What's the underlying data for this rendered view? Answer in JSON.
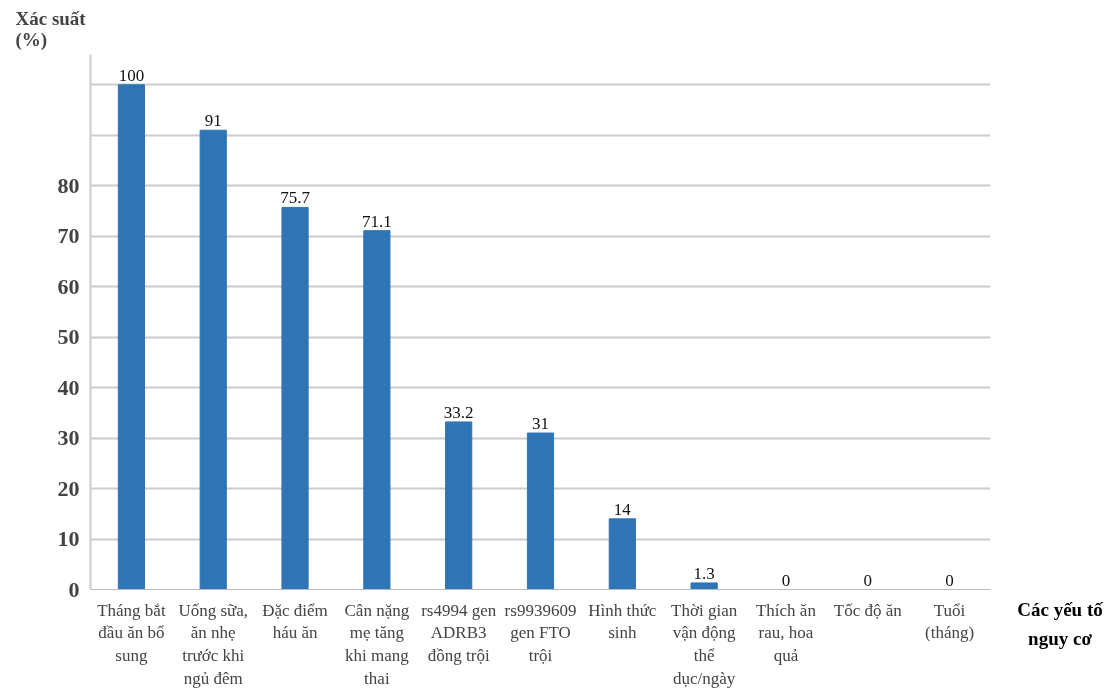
{
  "chart_data": {
    "type": "bar",
    "xlabel": "Các yếu tố\nnguy cơ",
    "ylabel": "Xác suất\n(%)",
    "categories": [
      "Tháng bắt\nđầu ăn bổ\nsung",
      "Uống sữa,\năn nhẹ\ntrước khi\nngủ đêm",
      "Đặc điểm\nháu ăn",
      "Cân nặng\nmẹ tăng\nkhi mang\nthai",
      "rs4994 gen\nADRB3\nđồng trội",
      "rs9939609\ngen FTO\ntrội",
      "Hình thức\nsinh",
      "Thời gian\nvận động\nthể\ndục/ngày",
      "Thích ăn\nrau, hoa\nquả",
      "Tốc độ ăn",
      "Tuổi\n(tháng)"
    ],
    "values": [
      100,
      91,
      75.7,
      71.1,
      33.2,
      31,
      14,
      1.3,
      0,
      0,
      0
    ],
    "color": "#2f75b5",
    "data_labels": true,
    "ylim": [
      0,
      106
    ],
    "yticks": [
      0,
      10,
      20,
      30,
      40,
      50,
      60,
      70,
      80,
      {
        "value": 90,
        "label": null
      },
      {
        "value": 100,
        "label": null
      }
    ],
    "grid": "y"
  }
}
